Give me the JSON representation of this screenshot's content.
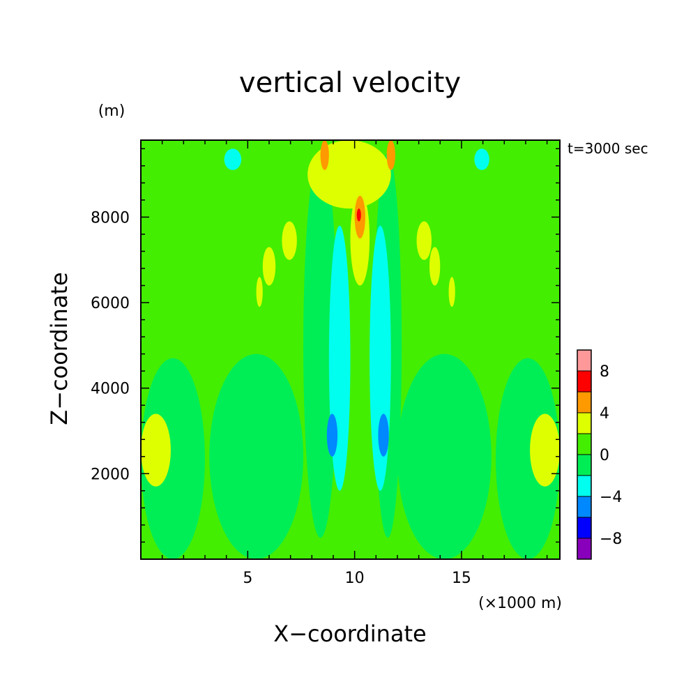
{
  "chart_data": {
    "type": "heatmap",
    "title": "vertical velocity",
    "time_label": "t=3000 sec",
    "xlabel": "X−coordinate",
    "ylabel": "Z−coordinate",
    "xunit": "(×1000 m)",
    "yunit": "(m)",
    "xlim": [
      0,
      19.6
    ],
    "ylim": [
      0,
      9800
    ],
    "x_ticks": [
      {
        "value": 5,
        "label": "5"
      },
      {
        "value": 10,
        "label": "10"
      },
      {
        "value": 15,
        "label": "15"
      }
    ],
    "y_ticks": [
      {
        "value": 2000,
        "label": "2000"
      },
      {
        "value": 4000,
        "label": "4000"
      },
      {
        "value": 6000,
        "label": "6000"
      },
      {
        "value": 8000,
        "label": "8000"
      }
    ],
    "colorbar": {
      "levels": [
        {
          "range": [
            8,
            10
          ],
          "color": "#ff9999"
        },
        {
          "range": [
            6,
            8
          ],
          "color": "#ff0000"
        },
        {
          "range": [
            4,
            6
          ],
          "color": "#ff9900"
        },
        {
          "range": [
            2,
            4
          ],
          "color": "#ddff00"
        },
        {
          "range": [
            0,
            2
          ],
          "color": "#44ee00"
        },
        {
          "range": [
            -2,
            0
          ],
          "color": "#00ee55"
        },
        {
          "range": [
            -4,
            -2
          ],
          "color": "#00ffee"
        },
        {
          "range": [
            -6,
            -4
          ],
          "color": "#0088ff"
        },
        {
          "range": [
            -8,
            -6
          ],
          "color": "#0000ff"
        },
        {
          "range": [
            -10,
            -8
          ],
          "color": "#8800bb"
        }
      ],
      "tick_labels": [
        {
          "value": 8,
          "label": "8"
        },
        {
          "value": 4,
          "label": "4"
        },
        {
          "value": 0,
          "label": "0"
        },
        {
          "value": -4,
          "label": "−4"
        },
        {
          "value": -8,
          "label": "−8"
        }
      ]
    },
    "regions": [
      {
        "level": "0_2",
        "x": [
          0,
          19.6
        ],
        "z": [
          0,
          9800
        ]
      },
      {
        "level": "m2_0",
        "x": [
          3.2,
          7.6
        ],
        "z": [
          0,
          4800
        ]
      },
      {
        "level": "m2_0",
        "x": [
          12.0,
          16.4
        ],
        "z": [
          0,
          4800
        ]
      },
      {
        "level": "m2_0",
        "x": [
          0,
          3.0
        ],
        "z": [
          0,
          4700
        ]
      },
      {
        "level": "m2_0",
        "x": [
          16.6,
          19.6
        ],
        "z": [
          0,
          4700
        ]
      },
      {
        "level": "m2_0",
        "x": [
          7.6,
          9.2
        ],
        "z": [
          500,
          9500
        ]
      },
      {
        "level": "m2_0",
        "x": [
          10.9,
          12.2
        ],
        "z": [
          500,
          9500
        ]
      },
      {
        "level": "2_4",
        "x": [
          0,
          1.4
        ],
        "z": [
          1700,
          3400
        ]
      },
      {
        "level": "2_4",
        "x": [
          18.2,
          19.6
        ],
        "z": [
          1700,
          3400
        ]
      },
      {
        "level": "m4_m2",
        "x": [
          8.8,
          9.8
        ],
        "z": [
          1600,
          7800
        ]
      },
      {
        "level": "m4_m2",
        "x": [
          10.7,
          11.7
        ],
        "z": [
          1600,
          7800
        ]
      },
      {
        "level": "m4_m2",
        "x": [
          3.9,
          4.7
        ],
        "z": [
          9100,
          9600
        ]
      },
      {
        "level": "m4_m2",
        "x": [
          15.6,
          16.3
        ],
        "z": [
          9100,
          9600
        ]
      },
      {
        "level": "m6_m4",
        "x": [
          8.7,
          9.2
        ],
        "z": [
          2400,
          3400
        ]
      },
      {
        "level": "m6_m4",
        "x": [
          11.1,
          11.6
        ],
        "z": [
          2400,
          3400
        ]
      },
      {
        "level": "2_4",
        "x": [
          7.8,
          11.7
        ],
        "z": [
          8200,
          9800
        ]
      },
      {
        "level": "2_4",
        "x": [
          9.8,
          10.7
        ],
        "z": [
          6400,
          8600
        ]
      },
      {
        "level": "4_6",
        "x": [
          8.4,
          8.8
        ],
        "z": [
          9100,
          9800
        ]
      },
      {
        "level": "4_6",
        "x": [
          11.5,
          11.9
        ],
        "z": [
          9100,
          9800
        ]
      },
      {
        "level": "4_6",
        "x": [
          10.0,
          10.5
        ],
        "z": [
          7500,
          8500
        ]
      },
      {
        "level": "6_8",
        "x": [
          10.1,
          10.3
        ],
        "z": [
          7900,
          8200
        ]
      },
      {
        "level": "2_4",
        "x": [
          6.6,
          7.3
        ],
        "z": [
          7000,
          7900
        ]
      },
      {
        "level": "2_4",
        "x": [
          12.9,
          13.6
        ],
        "z": [
          7000,
          7900
        ]
      },
      {
        "level": "2_4",
        "x": [
          5.7,
          6.3
        ],
        "z": [
          6400,
          7300
        ]
      },
      {
        "level": "2_4",
        "x": [
          13.5,
          14.0
        ],
        "z": [
          6400,
          7300
        ]
      },
      {
        "level": "2_4",
        "x": [
          5.4,
          5.7
        ],
        "z": [
          5900,
          6600
        ]
      },
      {
        "level": "2_4",
        "x": [
          14.4,
          14.7
        ],
        "z": [
          5900,
          6600
        ]
      }
    ]
  }
}
